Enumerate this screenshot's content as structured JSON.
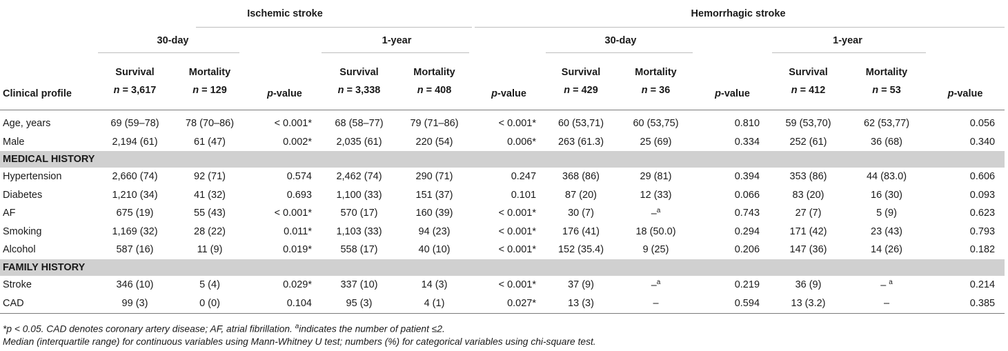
{
  "header": {
    "ischemic": "Ischemic stroke",
    "hemorrhagic": "Hemorrhagic stroke",
    "periods": [
      "30-day",
      "1-year",
      "30-day",
      "1-year"
    ],
    "clinical_profile": "Clinical profile",
    "survival": "Survival",
    "mortality": "Mortality",
    "pvalue_italic": "p",
    "pvalue_rest": "-value",
    "n_prefix": "n",
    "n_values": [
      "= 3,617",
      "= 129",
      "= 3,338",
      "= 408",
      "=  429",
      "= 36",
      "= 412",
      "= 53"
    ]
  },
  "rows_top": [
    {
      "label": "Age, years",
      "cells": [
        "69 (59–78)",
        "78 (70–86)",
        "< 0.001*",
        "68 (58–77)",
        "79 (71–86)",
        "< 0.001*",
        "60 (53,71)",
        "60 (53,75)",
        "0.810",
        "59 (53,70)",
        "62 (53,77)",
        "0.056"
      ]
    },
    {
      "label": "Male",
      "cells": [
        "2,194 (61)",
        "61 (47)",
        "0.002*",
        "2,035 (61)",
        "220 (54)",
        "0.006*",
        "263 (61.3)",
        "25 (69)",
        "0.334",
        "252 (61)",
        "36 (68)",
        "0.340"
      ]
    }
  ],
  "section_medical": "MEDICAL HISTORY",
  "rows_medical": [
    {
      "label": "Hypertension",
      "cells": [
        "2,660 (74)",
        "92 (71)",
        "0.574",
        "2,462 (74)",
        "290 (71)",
        "0.247",
        "368 (86)",
        "29 (81)",
        "0.394",
        "353 (86)",
        "44 (83.0)",
        "0.606"
      ]
    },
    {
      "label": "Diabetes",
      "cells": [
        "1,210 (34)",
        "41 (32)",
        "0.693",
        "1,100 (33)",
        "151 (37)",
        "0.101",
        "87 (20)",
        "12 (33)",
        "0.066",
        "83 (20)",
        "16 (30)",
        "0.093"
      ]
    },
    {
      "label": "AF",
      "cells": [
        "675 (19)",
        "55 (43)",
        "< 0.001*",
        "570 (17)",
        "160 (39)",
        "< 0.001*",
        "30 (7)",
        "–a",
        "0.743",
        "27 (7)",
        "5 (9)",
        "0.623"
      ]
    },
    {
      "label": "Smoking",
      "cells": [
        "1,169 (32)",
        "28 (22)",
        "0.011*",
        "1,103 (33)",
        "94 (23)",
        "< 0.001*",
        "176 (41)",
        "18 (50.0)",
        "0.294",
        "171 (42)",
        "23 (43)",
        "0.793"
      ]
    },
    {
      "label": "Alcohol",
      "cells": [
        "587 (16)",
        "11 (9)",
        "0.019*",
        "558 (17)",
        "40 (10)",
        "< 0.001*",
        "152 (35.4)",
        "9 (25)",
        "0.206",
        "147 (36)",
        "14 (26)",
        "0.182"
      ]
    }
  ],
  "section_family": "FAMILY HISTORY",
  "rows_family": [
    {
      "label": "Stroke",
      "cells": [
        "346 (10)",
        "5 (4)",
        "0.029*",
        "337 (10)",
        "14 (3)",
        "< 0.001*",
        "37 (9)",
        "–a",
        "0.219",
        "36 (9)",
        "– a",
        "0.214"
      ]
    },
    {
      "label": "CAD",
      "cells": [
        "99 (3)",
        "0 (0)",
        "0.104",
        "95 (3)",
        "4 (1)",
        "0.027*",
        "13 (3)",
        "–",
        "0.594",
        "13 (3.2)",
        "–",
        "0.385"
      ]
    }
  ],
  "footnotes": {
    "line1": "*p < 0.05. CAD denotes coronary artery disease; AF, atrial fibrillation. aindicates the number of patient ≤2.",
    "line2": "Median (interquartile range) for continuous variables using Mann-Whitney U test; numbers (%) for categorical variables using chi-square test."
  }
}
